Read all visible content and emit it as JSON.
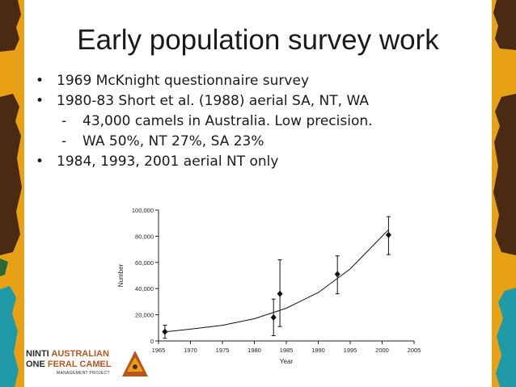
{
  "slide": {
    "title": "Early population survey work",
    "bullets": [
      {
        "marker": "•",
        "text": "1969 McKnight questionnaire survey"
      },
      {
        "marker": "•",
        "text": "1980-83 Short et al. (1988) aerial SA, NT, WA"
      },
      {
        "marker": "-",
        "text": "43,000 camels in Australia. Low precision.",
        "sub": true
      },
      {
        "marker": "-",
        "text": "WA 50%, NT 27%, SA 23%",
        "sub": true
      },
      {
        "marker": "•",
        "text": "1984, 1993, 2001 aerial NT only"
      }
    ]
  },
  "logo": {
    "line1a": "NINTI",
    "line1b": "AUSTRALIAN",
    "line2a": "ONE",
    "line2b": "FERAL CAMEL",
    "line3": "MANAGEMENT PROJECT"
  },
  "colors": {
    "strip_brown": "#4a2a12",
    "strip_orange": "#e8a015",
    "strip_teal": "#1f9aa6",
    "logo_accent": "#b8551f"
  },
  "chart_data": {
    "type": "scatter",
    "xlabel": "Year",
    "ylabel": "Number",
    "xlim": [
      1965,
      2005
    ],
    "ylim": [
      0,
      100000
    ],
    "x_ticks": [
      1965,
      1970,
      1975,
      1980,
      1985,
      1990,
      1995,
      2000,
      2005
    ],
    "y_ticks": [
      0,
      20000,
      40000,
      60000,
      80000,
      100000
    ],
    "y_tick_labels": [
      "0",
      "20,000",
      "40,000",
      "60,000",
      "80,000",
      "100,000"
    ],
    "points": [
      {
        "x": 1966,
        "y": 7000,
        "low": 2000,
        "high": 12000
      },
      {
        "x": 1983,
        "y": 18000,
        "low": 4000,
        "high": 32000
      },
      {
        "x": 1984,
        "y": 36000,
        "low": 11000,
        "high": 62000
      },
      {
        "x": 1993,
        "y": 51000,
        "low": 36000,
        "high": 65000
      },
      {
        "x": 2001,
        "y": 81000,
        "low": 66000,
        "high": 95000
      }
    ],
    "trend": {
      "x": [
        1966,
        1970,
        1975,
        1980,
        1985,
        1990,
        1995,
        2000,
        2001
      ],
      "y": [
        7000,
        9000,
        12000,
        17000,
        25000,
        37000,
        55000,
        80000,
        85000
      ]
    },
    "grid": false,
    "legend": "none"
  }
}
